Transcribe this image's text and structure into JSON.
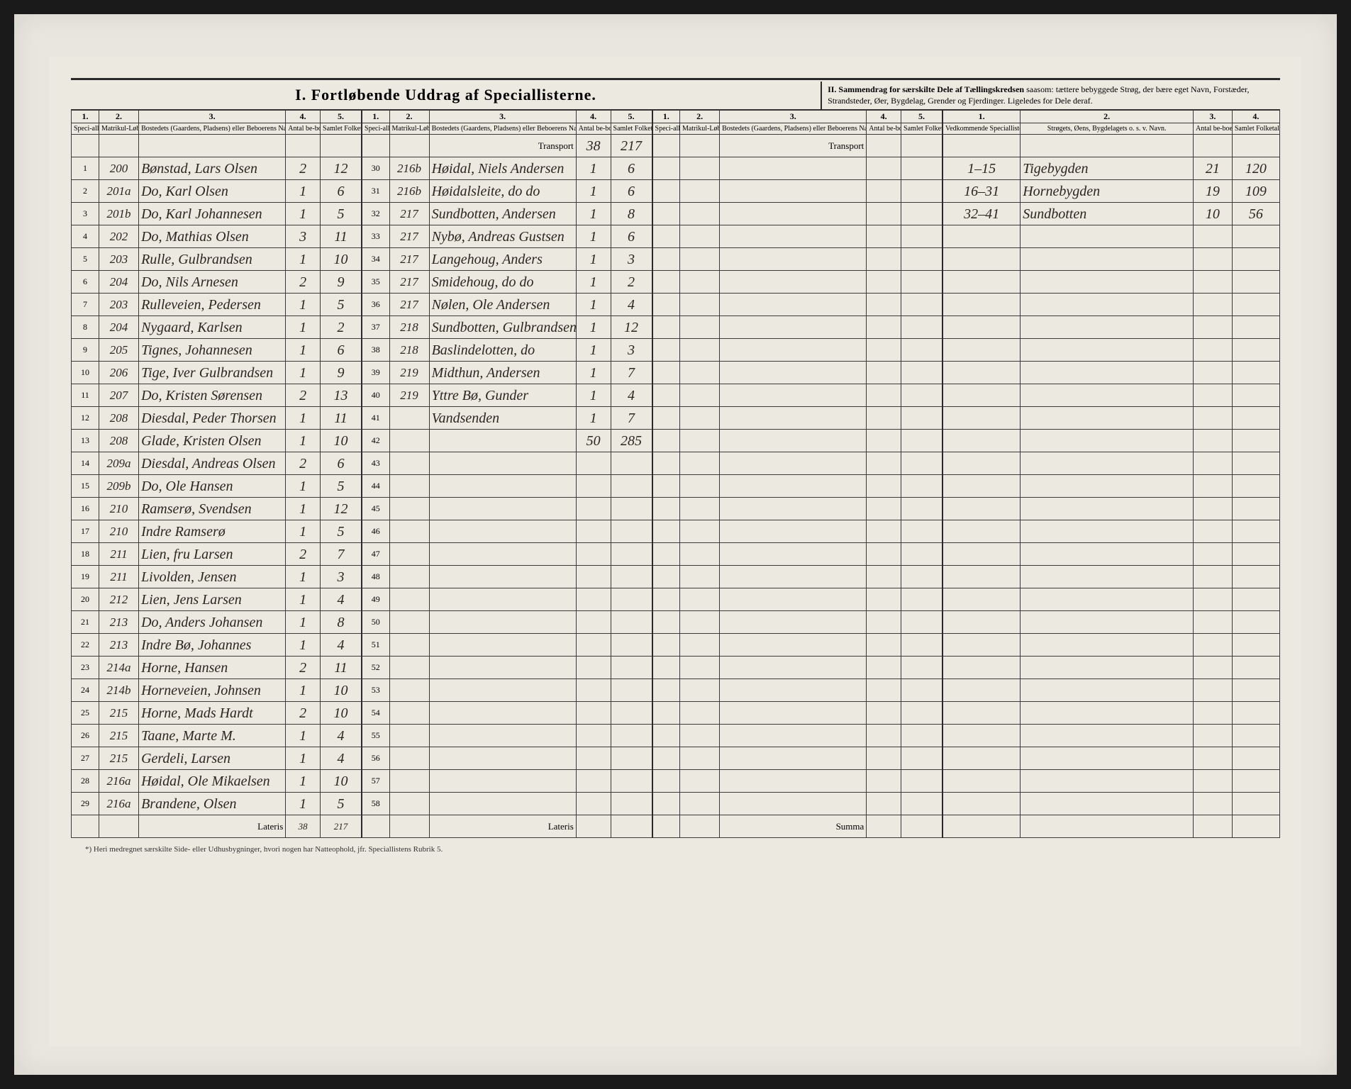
{
  "titles": {
    "main": "I.  Fortløbende Uddrag af Speciallisterne.",
    "side_bold": "II.  Sammendrag for særskilte Dele af Tællingskredsen",
    "side_rest": " saasom: tættere bebyggede Strøg, der bære eget Navn, Forstæder, Strandsteder, Øer, Bygdelag, Grender og Fjerdinger. Ligeledes for Dele deraf."
  },
  "col_nums": [
    "1.",
    "2.",
    "3.",
    "4.",
    "5.",
    "1.",
    "2.",
    "3.",
    "4.",
    "5.",
    "1.",
    "2.",
    "3.",
    "4.",
    "5.",
    "1.",
    "2.",
    "3.",
    "4."
  ],
  "headers": {
    "spec": "Speci-alli-ster-nes No.",
    "matr": "Matrikul-Løbe-No.",
    "bosted": "Bostedets (Gaardens, Pladsens) eller Beboerens Navn.",
    "huse": "Antal be-boede Huse*).",
    "folk": "Samlet Folketal (tilstede-værende Per-soner).",
    "vedk": "Vedkommende Speciallisters No.",
    "strog": "Strøgets, Øens, Bygdelagets o. s. v. Navn.",
    "huse2": "Antal be-boede Huse.",
    "folk2": "Samlet Folketal (tilstede-værende Per-soner)."
  },
  "transport_label": "Transport",
  "transport_b": {
    "huse": "38",
    "folk": "217"
  },
  "lateris_label": "Lateris",
  "summa_label": "Summa",
  "lateris_a": {
    "huse": "38",
    "folk": "217"
  },
  "lateris_b": {
    "huse": "50",
    "folk": "285"
  },
  "footnote": "*) Heri medregnet særskilte Side- eller Udhusbygninger, hvori nogen har Natteophold, jfr. Speciallistens Rubrik 5.",
  "blockA": [
    {
      "n": "1",
      "m": "200",
      "b": "Bønstad, Lars Olsen",
      "h": "2",
      "f": "12"
    },
    {
      "n": "2",
      "m": "201a",
      "b": "Do, Karl Olsen",
      "h": "1",
      "f": "6"
    },
    {
      "n": "3",
      "m": "201b",
      "b": "Do, Karl Johannesen",
      "h": "1",
      "f": "5"
    },
    {
      "n": "4",
      "m": "202",
      "b": "Do, Mathias Olsen",
      "h": "3",
      "f": "11"
    },
    {
      "n": "5",
      "m": "203",
      "b": "Rulle, Gulbrandsen",
      "h": "1",
      "f": "10"
    },
    {
      "n": "6",
      "m": "204",
      "b": "Do, Nils Arnesen",
      "h": "2",
      "f": "9"
    },
    {
      "n": "7",
      "m": "203",
      "b": "Rulleveien, Pedersen",
      "h": "1",
      "f": "5"
    },
    {
      "n": "8",
      "m": "204",
      "b": "Nygaard, Karlsen",
      "h": "1",
      "f": "2"
    },
    {
      "n": "9",
      "m": "205",
      "b": "Tignes, Johannesen",
      "h": "1",
      "f": "6"
    },
    {
      "n": "10",
      "m": "206",
      "b": "Tige, Iver Gulbrandsen",
      "h": "1",
      "f": "9"
    },
    {
      "n": "11",
      "m": "207",
      "b": "Do, Kristen Sørensen",
      "h": "2",
      "f": "13"
    },
    {
      "n": "12",
      "m": "208",
      "b": "Diesdal, Peder Thorsen",
      "h": "1",
      "f": "11"
    },
    {
      "n": "13",
      "m": "208",
      "b": "Glade, Kristen Olsen",
      "h": "1",
      "f": "10"
    },
    {
      "n": "14",
      "m": "209a",
      "b": "Diesdal, Andreas Olsen",
      "h": "2",
      "f": "6"
    },
    {
      "n": "15",
      "m": "209b",
      "b": "Do, Ole Hansen",
      "h": "1",
      "f": "5"
    },
    {
      "n": "16",
      "m": "210",
      "b": "Ramserø, Svendsen",
      "h": "1",
      "f": "12"
    },
    {
      "n": "17",
      "m": "210",
      "b": "Indre Ramserø",
      "h": "1",
      "f": "5"
    },
    {
      "n": "18",
      "m": "211",
      "b": "Lien, fru Larsen",
      "h": "2",
      "f": "7"
    },
    {
      "n": "19",
      "m": "211",
      "b": "Livolden, Jensen",
      "h": "1",
      "f": "3"
    },
    {
      "n": "20",
      "m": "212",
      "b": "Lien, Jens Larsen",
      "h": "1",
      "f": "4"
    },
    {
      "n": "21",
      "m": "213",
      "b": "Do, Anders Johansen",
      "h": "1",
      "f": "8"
    },
    {
      "n": "22",
      "m": "213",
      "b": "Indre Bø, Johannes",
      "h": "1",
      "f": "4"
    },
    {
      "n": "23",
      "m": "214a",
      "b": "Horne, Hansen",
      "h": "2",
      "f": "11"
    },
    {
      "n": "24",
      "m": "214b",
      "b": "Horneveien, Johnsen",
      "h": "1",
      "f": "10"
    },
    {
      "n": "25",
      "m": "215",
      "b": "Horne, Mads Hardt",
      "h": "2",
      "f": "10"
    },
    {
      "n": "26",
      "m": "215",
      "b": "Taane, Marte M.",
      "h": "1",
      "f": "4"
    },
    {
      "n": "27",
      "m": "215",
      "b": "Gerdeli, Larsen",
      "h": "1",
      "f": "4"
    },
    {
      "n": "28",
      "m": "216a",
      "b": "Høidal, Ole Mikaelsen",
      "h": "1",
      "f": "10"
    },
    {
      "n": "29",
      "m": "216a",
      "b": "Brandene, Olsen",
      "h": "1",
      "f": "5"
    }
  ],
  "blockB": [
    {
      "n": "30",
      "m": "216b",
      "b": "Høidal, Niels Andersen",
      "h": "1",
      "f": "6"
    },
    {
      "n": "31",
      "m": "216b",
      "b": "Høidalsleite, do do",
      "h": "1",
      "f": "6"
    },
    {
      "n": "32",
      "m": "217",
      "b": "Sundbotten, Andersen",
      "h": "1",
      "f": "8"
    },
    {
      "n": "33",
      "m": "217",
      "b": "Nybø, Andreas Gustsen",
      "h": "1",
      "f": "6"
    },
    {
      "n": "34",
      "m": "217",
      "b": "Langehoug, Anders",
      "h": "1",
      "f": "3"
    },
    {
      "n": "35",
      "m": "217",
      "b": "Smidehoug, do do",
      "h": "1",
      "f": "2"
    },
    {
      "n": "36",
      "m": "217",
      "b": "Nølen, Ole Andersen",
      "h": "1",
      "f": "4"
    },
    {
      "n": "37",
      "m": "218",
      "b": "Sundbotten, Gulbrandsen",
      "h": "1",
      "f": "12"
    },
    {
      "n": "38",
      "m": "218",
      "b": "Baslindelotten, do",
      "h": "1",
      "f": "3"
    },
    {
      "n": "39",
      "m": "219",
      "b": "Midthun, Andersen",
      "h": "1",
      "f": "7"
    },
    {
      "n": "40",
      "m": "219",
      "b": "Yttre Bø, Gunder",
      "h": "1",
      "f": "4"
    },
    {
      "n": "41",
      "m": "",
      "b": "Vandsenden",
      "h": "1",
      "f": "7"
    },
    {
      "n": "42",
      "m": "",
      "b": "",
      "h": "50",
      "f": "285"
    },
    {
      "n": "43",
      "m": "",
      "b": "",
      "h": "",
      "f": ""
    },
    {
      "n": "44",
      "m": "",
      "b": "",
      "h": "",
      "f": ""
    },
    {
      "n": "45",
      "m": "",
      "b": "",
      "h": "",
      "f": ""
    },
    {
      "n": "46",
      "m": "",
      "b": "",
      "h": "",
      "f": ""
    },
    {
      "n": "47",
      "m": "",
      "b": "",
      "h": "",
      "f": ""
    },
    {
      "n": "48",
      "m": "",
      "b": "",
      "h": "",
      "f": ""
    },
    {
      "n": "49",
      "m": "",
      "b": "",
      "h": "",
      "f": ""
    },
    {
      "n": "50",
      "m": "",
      "b": "",
      "h": "",
      "f": ""
    },
    {
      "n": "51",
      "m": "",
      "b": "",
      "h": "",
      "f": ""
    },
    {
      "n": "52",
      "m": "",
      "b": "",
      "h": "",
      "f": ""
    },
    {
      "n": "53",
      "m": "",
      "b": "",
      "h": "",
      "f": ""
    },
    {
      "n": "54",
      "m": "",
      "b": "",
      "h": "",
      "f": ""
    },
    {
      "n": "55",
      "m": "",
      "b": "",
      "h": "",
      "f": ""
    },
    {
      "n": "56",
      "m": "",
      "b": "",
      "h": "",
      "f": ""
    },
    {
      "n": "57",
      "m": "",
      "b": "",
      "h": "",
      "f": ""
    },
    {
      "n": "58",
      "m": "",
      "b": "",
      "h": "",
      "f": ""
    }
  ],
  "summary": [
    {
      "spec": "1–15",
      "name": "Tigebygden",
      "h": "21",
      "f": "120"
    },
    {
      "spec": "16–31",
      "name": "Hornebygden",
      "h": "19",
      "f": "109"
    },
    {
      "spec": "32–41",
      "name": "Sundbotten",
      "h": "10",
      "f": "56"
    }
  ]
}
